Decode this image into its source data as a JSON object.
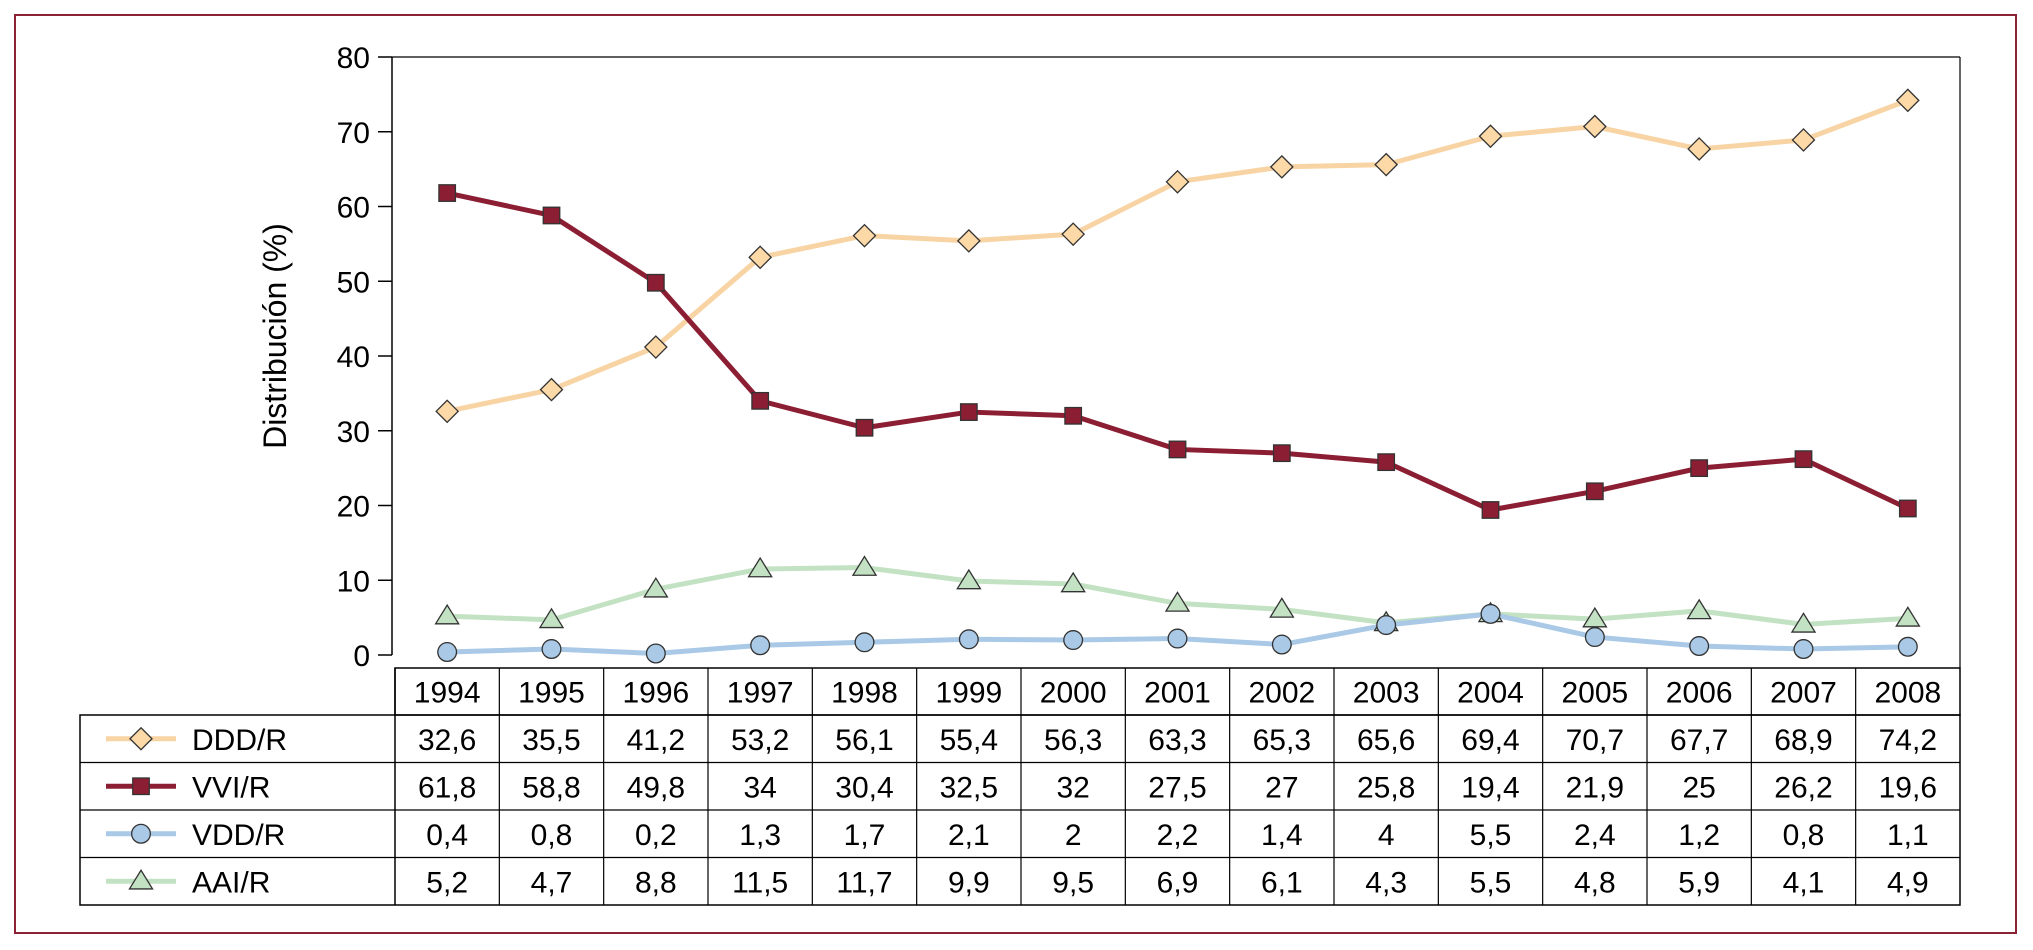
{
  "chart_data": {
    "type": "line",
    "ylabel": "Distribución (%)",
    "ylim": [
      0,
      80
    ],
    "yticks": [
      "0",
      "10",
      "20",
      "30",
      "40",
      "50",
      "60",
      "70",
      "80"
    ],
    "categories": [
      "1994",
      "1995",
      "1996",
      "1997",
      "1998",
      "1999",
      "2000",
      "2001",
      "2002",
      "2003",
      "2004",
      "2005",
      "2006",
      "2007",
      "2008"
    ],
    "grid": false,
    "legend": "data-table-below",
    "series": [
      {
        "name": "DDD/R",
        "marker": "diamond",
        "line_color": "#f8d4a4",
        "marker_fill": "#fcd9a7",
        "values": [
          32.6,
          35.5,
          41.2,
          53.2,
          56.1,
          55.4,
          56.3,
          63.3,
          65.3,
          65.6,
          69.4,
          70.7,
          67.7,
          68.9,
          74.2
        ],
        "labels": [
          "32,6",
          "35,5",
          "41,2",
          "53,2",
          "56,1",
          "55,4",
          "56,3",
          "63,3",
          "65,3",
          "65,6",
          "69,4",
          "70,7",
          "67,7",
          "68,9",
          "74,2"
        ]
      },
      {
        "name": "VVI/R",
        "marker": "square",
        "line_color": "#8b1e33",
        "marker_fill": "#8b1e33",
        "values": [
          61.8,
          58.8,
          49.8,
          34,
          30.4,
          32.5,
          32,
          27.5,
          27,
          25.8,
          19.4,
          21.9,
          25,
          26.2,
          19.6
        ],
        "labels": [
          "61,8",
          "58,8",
          "49,8",
          "34",
          "30,4",
          "32,5",
          "32",
          "27,5",
          "27",
          "25,8",
          "19,4",
          "21,9",
          "25",
          "26,2",
          "19,6"
        ]
      },
      {
        "name": "VDD/R",
        "marker": "circle",
        "line_color": "#a9c9e6",
        "marker_fill": "#a9c9e6",
        "values": [
          0.4,
          0.8,
          0.2,
          1.3,
          1.7,
          2.1,
          2,
          2.2,
          1.4,
          4,
          5.5,
          2.4,
          1.2,
          0.8,
          1.1
        ],
        "labels": [
          "0,4",
          "0,8",
          "0,2",
          "1,3",
          "1,7",
          "2,1",
          "2",
          "2,2",
          "1,4",
          "4",
          "5,5",
          "2,4",
          "1,2",
          "0,8",
          "1,1"
        ]
      },
      {
        "name": "AAI/R",
        "marker": "triangle",
        "line_color": "#c3e2c3",
        "marker_fill": "#c3e2c3",
        "values": [
          5.2,
          4.7,
          8.8,
          11.5,
          11.7,
          9.9,
          9.5,
          6.9,
          6.1,
          4.3,
          5.5,
          4.8,
          5.9,
          4.1,
          4.9
        ],
        "labels": [
          "5,2",
          "4,7",
          "8,8",
          "11,5",
          "11,7",
          "9,9",
          "9,5",
          "6,9",
          "6,1",
          "4,3",
          "5,5",
          "4,8",
          "5,9",
          "4,1",
          "4,9"
        ]
      }
    ]
  },
  "colors": {
    "frame_border": "#8a2233"
  }
}
